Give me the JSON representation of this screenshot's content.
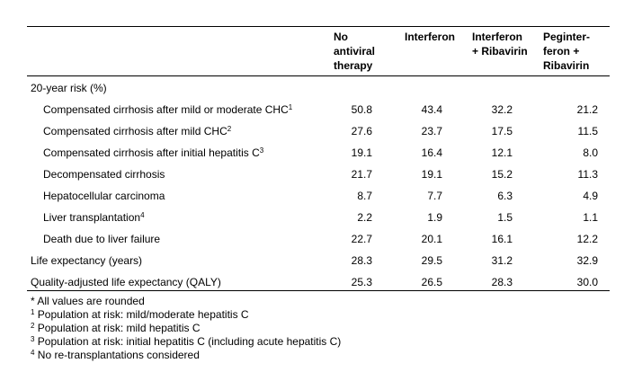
{
  "table": {
    "headers": [
      {
        "key": "none",
        "label": "No\nantiviral\ntherapy"
      },
      {
        "key": "ifn",
        "label": "Interferon"
      },
      {
        "key": "ifn_rib",
        "label": "Interferon\n+ Ribavirin"
      },
      {
        "key": "peg_rib",
        "label": "Peginter-\nferon +\nRibavirin"
      }
    ],
    "section_label": "20-year risk (%)",
    "rows": [
      {
        "label": "Compensated cirrhosis after mild or moderate CHC",
        "sup": "1",
        "indent": true,
        "values": [
          "50.8",
          "43.4",
          "32.2",
          "21.2"
        ]
      },
      {
        "label": "Compensated cirrhosis after mild CHC",
        "sup": "2",
        "indent": true,
        "values": [
          "27.6",
          "23.7",
          "17.5",
          "11.5"
        ]
      },
      {
        "label": "Compensated cirrhosis after initial hepatitis C",
        "sup": "3",
        "indent": true,
        "values": [
          "19.1",
          "16.4",
          "12.1",
          "8.0"
        ]
      },
      {
        "label": "Decompensated cirrhosis",
        "sup": "",
        "indent": true,
        "values": [
          "21.7",
          "19.1",
          "15.2",
          "11.3"
        ]
      },
      {
        "label": "Hepatocellular carcinoma",
        "sup": "",
        "indent": true,
        "values": [
          "8.7",
          "7.7",
          "6.3",
          "4.9"
        ]
      },
      {
        "label": "Liver transplantation",
        "sup": "4",
        "indent": true,
        "values": [
          "2.2",
          "1.9",
          "1.5",
          "1.1"
        ]
      },
      {
        "label": "Death due to liver failure",
        "sup": "",
        "indent": true,
        "values": [
          "22.7",
          "20.1",
          "16.1",
          "12.2"
        ]
      },
      {
        "label": "Life expectancy (years)",
        "sup": "",
        "indent": false,
        "values": [
          "28.3",
          "29.5",
          "31.2",
          "32.9"
        ]
      },
      {
        "label": "Quality-adjusted life expectancy (QALY)",
        "sup": "",
        "indent": false,
        "values": [
          "25.3",
          "26.5",
          "28.3",
          "30.0"
        ]
      }
    ]
  },
  "footnotes": [
    {
      "mark": "",
      "text": "* All values are rounded"
    },
    {
      "mark": "1",
      "text": " Population at risk: mild/moderate hepatitis C"
    },
    {
      "mark": "2",
      "text": " Population at risk: mild hepatitis C"
    },
    {
      "mark": "3",
      "text": " Population at risk: initial hepatitis C (including acute hepatitis C)"
    },
    {
      "mark": "4",
      "text": " No re-transplantations considered"
    }
  ]
}
